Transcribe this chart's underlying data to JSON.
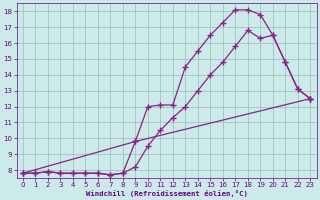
{
  "bg_color": "#cceae8",
  "line_color": "#882288",
  "grid_color": "#99bbbb",
  "xlabel": "Windchill (Refroidissement éolien,°C)",
  "xlabel_color": "#660088",
  "tick_color": "#660088",
  "xlim": [
    -0.5,
    23.5
  ],
  "ylim": [
    7.5,
    18.5
  ],
  "xticks": [
    0,
    1,
    2,
    3,
    4,
    5,
    6,
    7,
    8,
    9,
    10,
    11,
    12,
    13,
    14,
    15,
    16,
    17,
    18,
    19,
    20,
    21,
    22,
    23
  ],
  "yticks": [
    8,
    9,
    10,
    11,
    12,
    13,
    14,
    15,
    16,
    17,
    18
  ],
  "line1_x": [
    0,
    1,
    2,
    3,
    4,
    5,
    6,
    7,
    8,
    9,
    10,
    11,
    12,
    13,
    14,
    15,
    16,
    17,
    18,
    19,
    20,
    21,
    22,
    23
  ],
  "line1_y": [
    7.8,
    7.8,
    7.9,
    7.8,
    7.8,
    7.8,
    7.8,
    7.7,
    7.8,
    9.8,
    12.0,
    12.1,
    12.1,
    14.5,
    15.5,
    16.5,
    17.3,
    18.1,
    18.1,
    17.8,
    16.5,
    14.8,
    13.1,
    12.5
  ],
  "line2_x": [
    0,
    1,
    2,
    3,
    4,
    5,
    6,
    7,
    8,
    9,
    10,
    11,
    12,
    13,
    14,
    15,
    16,
    17,
    18,
    19,
    20,
    21,
    22,
    23
  ],
  "line2_y": [
    7.8,
    7.8,
    7.9,
    7.8,
    7.8,
    7.8,
    7.8,
    7.7,
    7.8,
    8.2,
    9.5,
    10.5,
    11.3,
    12.0,
    13.0,
    14.0,
    14.8,
    15.8,
    16.8,
    16.3,
    16.5,
    14.8,
    13.1,
    12.5
  ],
  "line3_x": [
    0,
    9,
    23
  ],
  "line3_y": [
    7.8,
    9.8,
    12.5
  ],
  "marker": "+",
  "markersize": 4,
  "markeredgewidth": 1.0,
  "linewidth": 0.9
}
